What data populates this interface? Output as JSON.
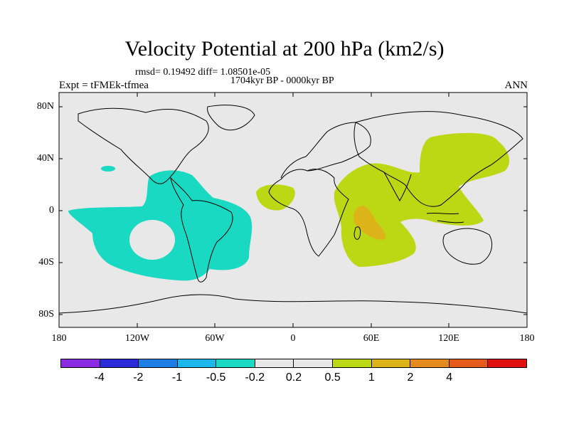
{
  "title": "Velocity Potential at 200 hPa (km2/s)",
  "stats": "rmsd= 0.19492  diff= 1.08501e-05",
  "period": "1704kyr BP - 0000kyr BP",
  "experiment": "Expt = tFMEk-tfmea",
  "season": "ANN",
  "lat_labels": [
    "80N",
    "40N",
    "0",
    "40S",
    "80S"
  ],
  "lon_labels": [
    "180",
    "120W",
    "60W",
    "0",
    "60E",
    "120E",
    "180"
  ],
  "colorbar": {
    "colors": [
      "#8a2be2",
      "#2a2ad8",
      "#1e7ee6",
      "#1ab8ea",
      "#19d9c2",
      "#e8e8e8",
      "#e8e8e8",
      "#bcd815",
      "#ddb31a",
      "#e58a1e",
      "#e55b1c",
      "#e01010"
    ],
    "labels": [
      "-4",
      "-2",
      "-1",
      "-0.5",
      "-0.2",
      "0.2",
      "0.5",
      "1",
      "2",
      "4"
    ]
  },
  "colors": {
    "land_bg": "#e8e8e8",
    "cyan": "#19d9c2",
    "yellowgreen": "#bcd815",
    "orange": "#ddb31a"
  }
}
